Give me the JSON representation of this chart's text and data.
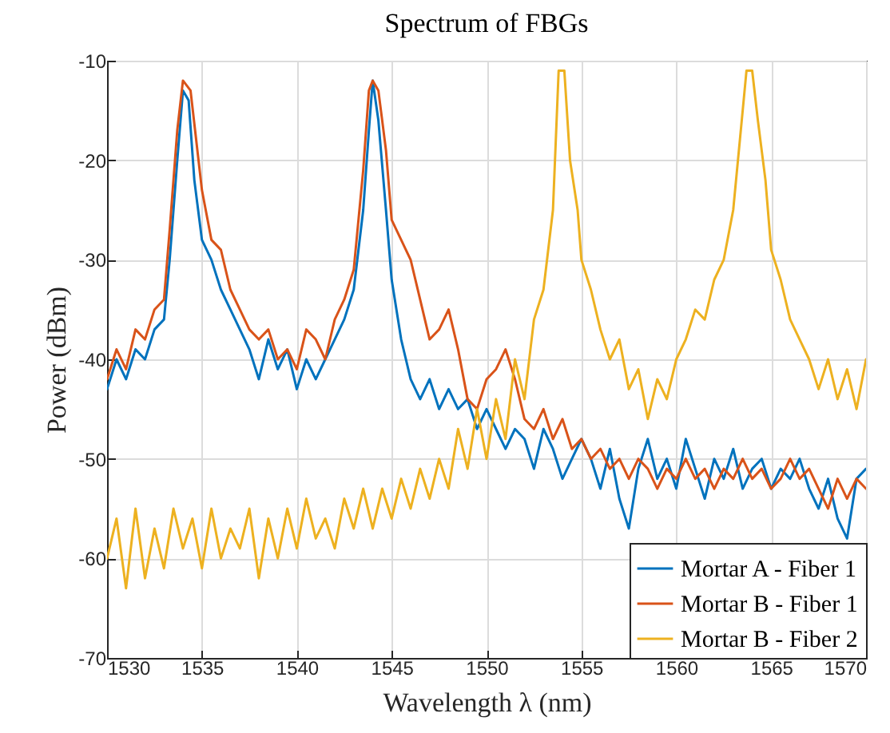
{
  "chart_data": {
    "type": "line",
    "title": "Spectrum of FBGs",
    "xlabel": "Wavelength λ (nm)",
    "ylabel": "Power (dBm)",
    "xlim": [
      1530,
      1570
    ],
    "xticks": [
      1530,
      1535,
      1540,
      1545,
      1550,
      1555,
      1560,
      1565,
      1570
    ],
    "ylim": [
      -70,
      -10
    ],
    "yticks": [
      -70,
      -60,
      -50,
      -40,
      -30,
      -20,
      -10
    ],
    "grid": true,
    "legend": "bottom right",
    "line_style": "solid",
    "series": [
      {
        "name": "Mortar A - Fiber 1",
        "color": "#0072bd",
        "x": [
          1530,
          1530.5,
          1531,
          1531.5,
          1532,
          1532.5,
          1533,
          1533.3,
          1533.7,
          1534,
          1534.3,
          1534.6,
          1535,
          1535.5,
          1536,
          1536.5,
          1537,
          1537.5,
          1538,
          1538.5,
          1539,
          1539.5,
          1540,
          1540.5,
          1541,
          1541.5,
          1542,
          1542.5,
          1543,
          1543.5,
          1543.8,
          1544,
          1544.3,
          1544.7,
          1545,
          1545.5,
          1546,
          1546.5,
          1547,
          1547.5,
          1548,
          1548.5,
          1549,
          1549.5,
          1550,
          1550.5,
          1551,
          1551.5,
          1552,
          1552.5,
          1553,
          1553.5,
          1554,
          1554.5,
          1555,
          1555.5,
          1556,
          1556.5,
          1557,
          1557.5,
          1558,
          1558.5,
          1559,
          1559.5,
          1560,
          1560.5,
          1561,
          1561.5,
          1562,
          1562.5,
          1563,
          1563.5,
          1564,
          1564.5,
          1565,
          1565.5,
          1566,
          1566.5,
          1567,
          1567.5,
          1568,
          1568.5,
          1569,
          1569.5,
          1570
        ],
        "values": [
          -43,
          -40,
          -42,
          -39,
          -40,
          -37,
          -36,
          -30,
          -20,
          -13,
          -14,
          -22,
          -28,
          -30,
          -33,
          -35,
          -37,
          -39,
          -42,
          -38,
          -41,
          -39,
          -43,
          -40,
          -42,
          -40,
          -38,
          -36,
          -33,
          -25,
          -17,
          -12,
          -16,
          -25,
          -32,
          -38,
          -42,
          -44,
          -42,
          -45,
          -43,
          -45,
          -44,
          -47,
          -45,
          -47,
          -49,
          -47,
          -48,
          -51,
          -47,
          -49,
          -52,
          -50,
          -48,
          -50,
          -53,
          -49,
          -54,
          -57,
          -51,
          -48,
          -52,
          -50,
          -53,
          -48,
          -51,
          -54,
          -50,
          -52,
          -49,
          -53,
          -51,
          -50,
          -53,
          -51,
          -52,
          -50,
          -53,
          -55,
          -52,
          -56,
          -58,
          -52,
          -51
        ]
      },
      {
        "name": "Mortar B - Fiber 1",
        "color": "#d95319",
        "x": [
          1530,
          1530.5,
          1531,
          1531.5,
          1532,
          1532.5,
          1533,
          1533.3,
          1533.7,
          1534,
          1534.4,
          1534.7,
          1535,
          1535.5,
          1536,
          1536.5,
          1537,
          1537.5,
          1538,
          1538.5,
          1539,
          1539.5,
          1540,
          1540.5,
          1541,
          1541.5,
          1542,
          1542.5,
          1543,
          1543.5,
          1543.8,
          1544,
          1544.3,
          1544.7,
          1545,
          1545.5,
          1546,
          1546.5,
          1547,
          1547.5,
          1548,
          1548.5,
          1549,
          1549.5,
          1550,
          1550.5,
          1551,
          1551.5,
          1552,
          1552.5,
          1553,
          1553.5,
          1554,
          1554.5,
          1555,
          1555.5,
          1556,
          1556.5,
          1557,
          1557.5,
          1558,
          1558.5,
          1559,
          1559.5,
          1560,
          1560.5,
          1561,
          1561.5,
          1562,
          1562.5,
          1563,
          1563.5,
          1564,
          1564.5,
          1565,
          1565.5,
          1566,
          1566.5,
          1567,
          1567.5,
          1568,
          1568.5,
          1569,
          1569.5,
          1570
        ],
        "values": [
          -42,
          -39,
          -41,
          -37,
          -38,
          -35,
          -34,
          -27,
          -17,
          -12,
          -13,
          -18,
          -23,
          -28,
          -29,
          -33,
          -35,
          -37,
          -38,
          -37,
          -40,
          -39,
          -41,
          -37,
          -38,
          -40,
          -36,
          -34,
          -31,
          -21,
          -13,
          -12,
          -13,
          -19,
          -26,
          -28,
          -30,
          -34,
          -38,
          -37,
          -35,
          -39,
          -44,
          -45,
          -42,
          -41,
          -39,
          -42,
          -46,
          -47,
          -45,
          -48,
          -46,
          -49,
          -48,
          -50,
          -49,
          -51,
          -50,
          -52,
          -50,
          -51,
          -53,
          -51,
          -52,
          -50,
          -52,
          -51,
          -53,
          -51,
          -52,
          -50,
          -52,
          -51,
          -53,
          -52,
          -50,
          -52,
          -51,
          -53,
          -55,
          -52,
          -54,
          -52,
          -53
        ]
      },
      {
        "name": "Mortar B - Fiber 2",
        "color": "#edb120",
        "x": [
          1530,
          1530.5,
          1531,
          1531.5,
          1532,
          1532.5,
          1533,
          1533.5,
          1534,
          1534.5,
          1535,
          1535.5,
          1536,
          1536.5,
          1537,
          1537.5,
          1538,
          1538.5,
          1539,
          1539.5,
          1540,
          1540.5,
          1541,
          1541.5,
          1542,
          1542.5,
          1543,
          1543.5,
          1544,
          1544.5,
          1545,
          1545.5,
          1546,
          1546.5,
          1547,
          1547.5,
          1548,
          1548.5,
          1549,
          1549.5,
          1550,
          1550.5,
          1551,
          1551.5,
          1552,
          1552.5,
          1553,
          1553.5,
          1553.8,
          1554.1,
          1554.4,
          1554.8,
          1555,
          1555.5,
          1556,
          1556.5,
          1557,
          1557.5,
          1558,
          1558.5,
          1559,
          1559.5,
          1560,
          1560.5,
          1561,
          1561.5,
          1562,
          1562.5,
          1563,
          1563.5,
          1563.7,
          1564,
          1564.3,
          1564.7,
          1565,
          1565.5,
          1566,
          1566.5,
          1567,
          1567.5,
          1568,
          1568.5,
          1569,
          1569.5,
          1570
        ],
        "values": [
          -60,
          -56,
          -63,
          -55,
          -62,
          -57,
          -61,
          -55,
          -59,
          -56,
          -61,
          -55,
          -60,
          -57,
          -59,
          -55,
          -62,
          -56,
          -60,
          -55,
          -59,
          -54,
          -58,
          -56,
          -59,
          -54,
          -57,
          -53,
          -57,
          -53,
          -56,
          -52,
          -55,
          -51,
          -54,
          -50,
          -53,
          -47,
          -51,
          -45,
          -50,
          -44,
          -48,
          -40,
          -44,
          -36,
          -33,
          -25,
          -11,
          -11,
          -20,
          -25,
          -30,
          -33,
          -37,
          -40,
          -38,
          -43,
          -41,
          -46,
          -42,
          -44,
          -40,
          -38,
          -35,
          -36,
          -32,
          -30,
          -25,
          -15,
          -11,
          -11,
          -16,
          -22,
          -29,
          -32,
          -36,
          -38,
          -40,
          -43,
          -40,
          -44,
          -41,
          -45,
          -40
        ]
      }
    ]
  }
}
